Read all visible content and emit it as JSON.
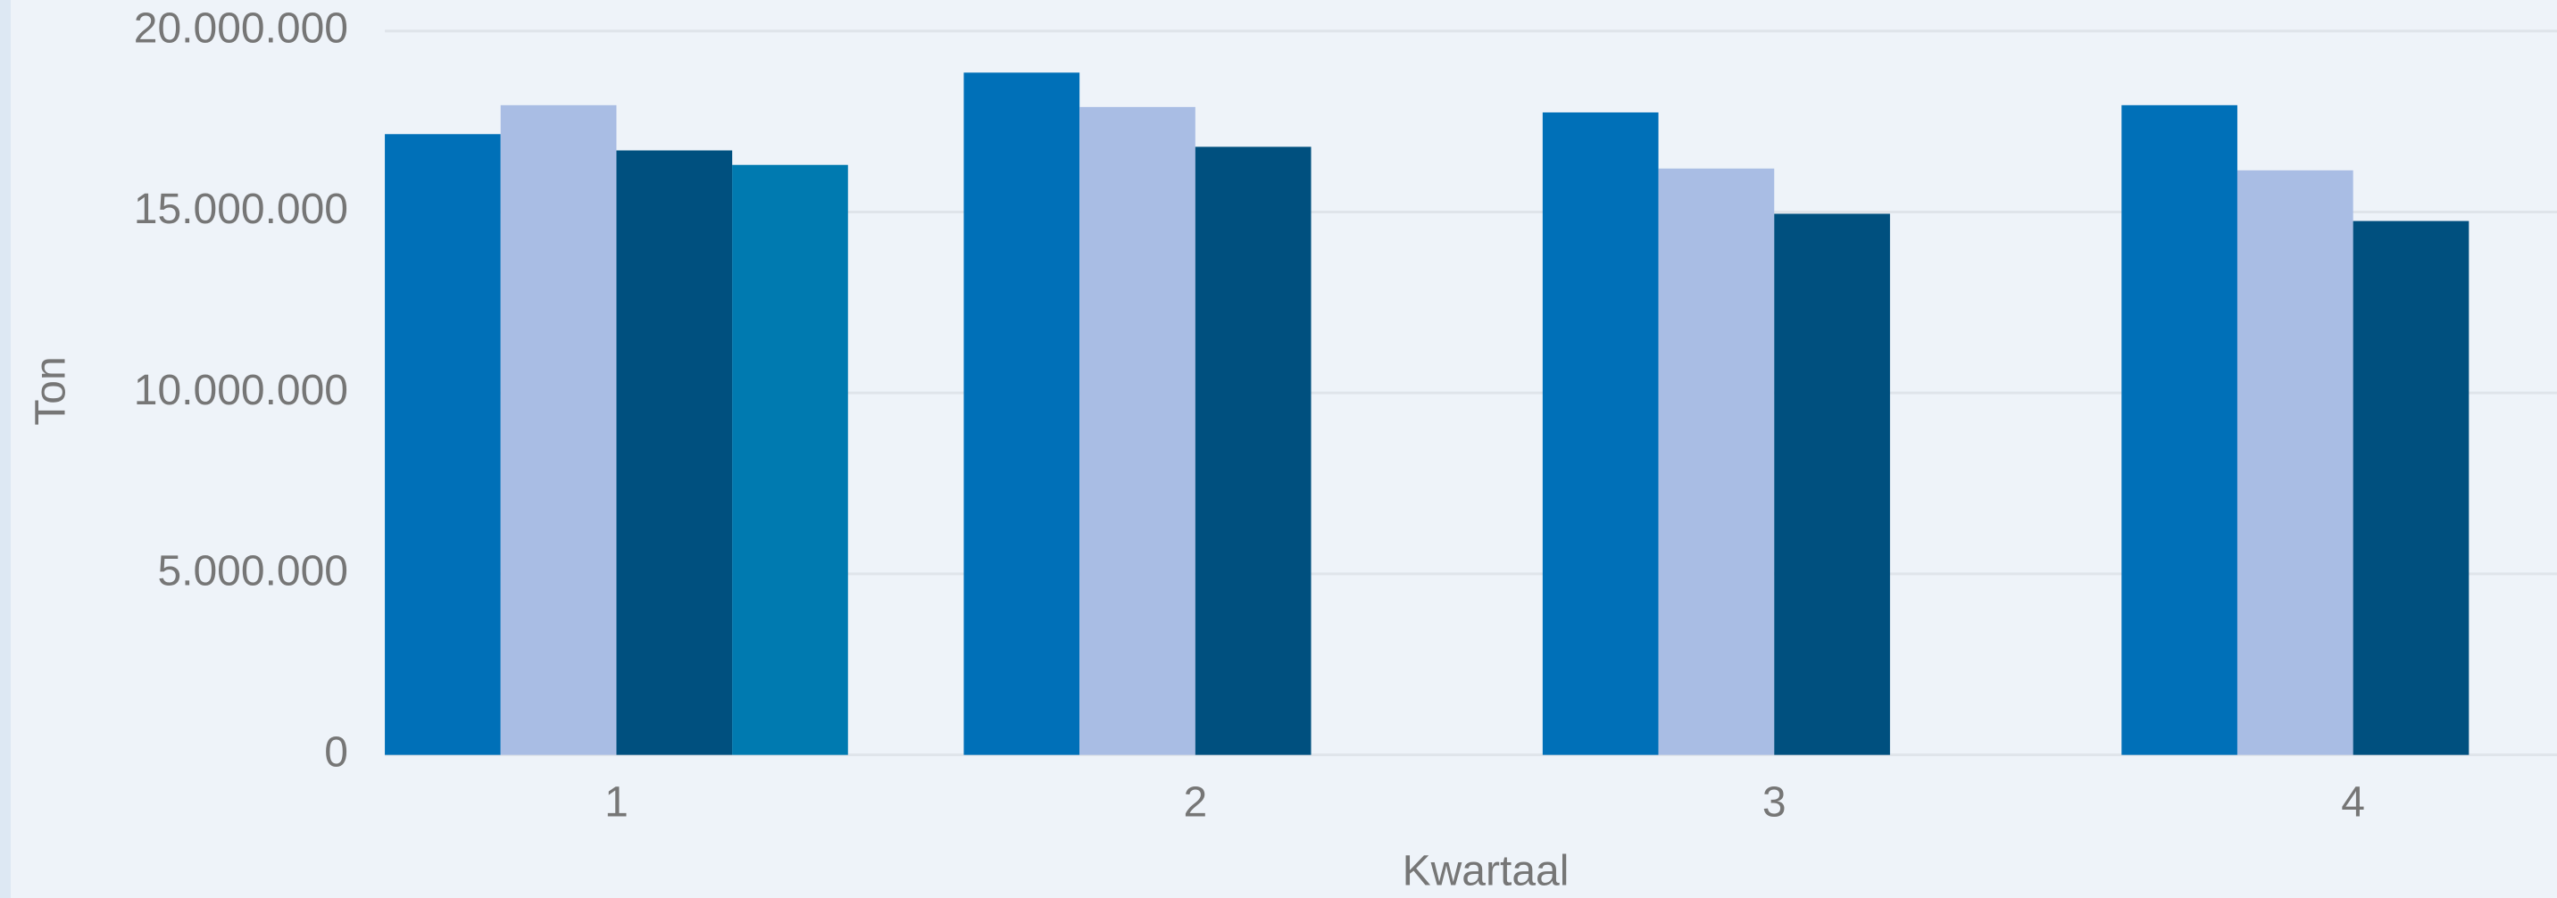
{
  "chart_data": {
    "type": "bar",
    "x_label": "Kwartaal",
    "y_label": "Ton",
    "categories": [
      "1",
      "2",
      "3",
      "4"
    ],
    "series": [
      {
        "color": "#0070b8",
        "values": [
          17150000,
          18850000,
          17750000,
          17950000
        ]
      },
      {
        "color": "#a9bde4",
        "values": [
          17950000,
          17900000,
          16200000,
          16150000
        ]
      },
      {
        "color": "#00507f",
        "values": [
          16700000,
          16800000,
          14950000,
          14750000
        ]
      },
      {
        "color": "#007ab0",
        "values": [
          16300000,
          null,
          null,
          null
        ]
      }
    ],
    "ylim": [
      0,
      20000000
    ],
    "yticks": [
      0,
      {
        "value": 5000000,
        "label": "5.000.000"
      },
      {
        "value": 10000000,
        "label": "10.000.000"
      },
      {
        "value": 15000000,
        "label": "15.000.000"
      },
      {
        "value": 20000000,
        "label": "20.000.000"
      }
    ],
    "grid": true
  }
}
